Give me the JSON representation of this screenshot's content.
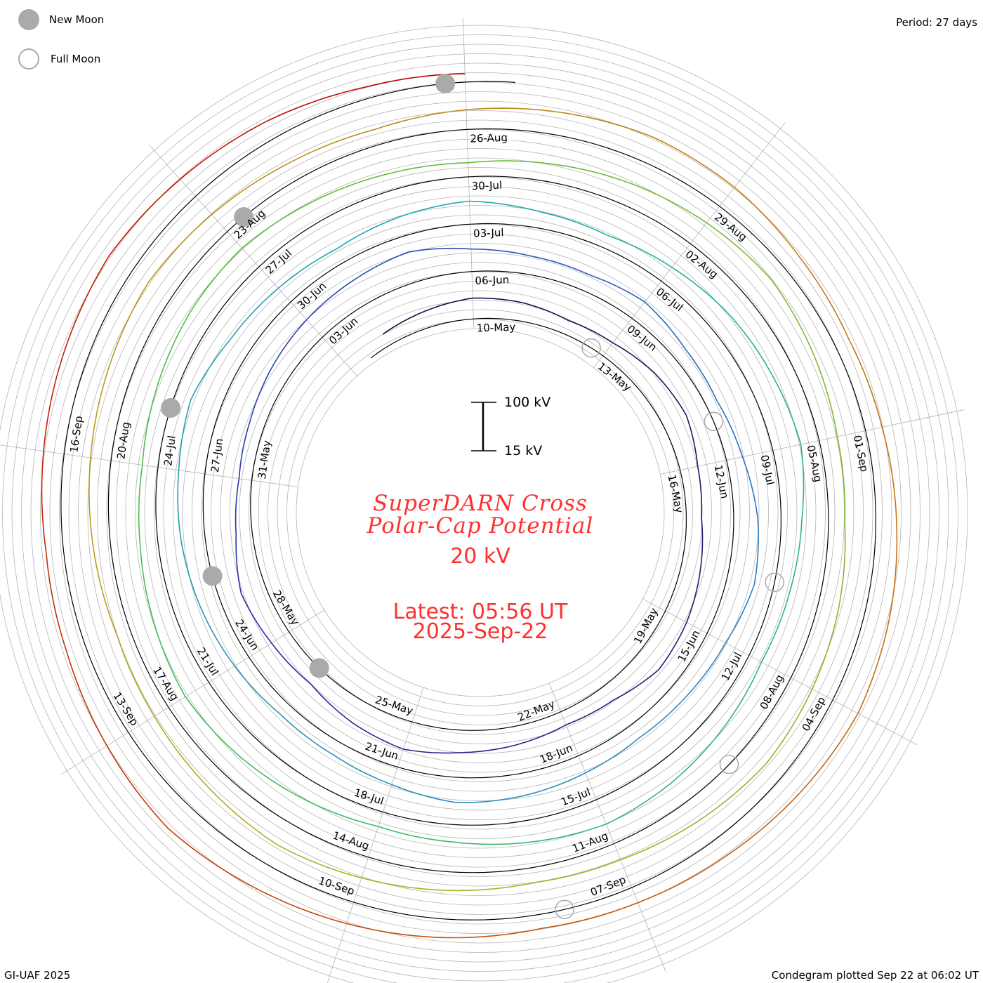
{
  "header": {
    "period": "Period: 27 days"
  },
  "legend": {
    "new_moon": "New Moon",
    "full_moon": "Full Moon"
  },
  "footer": {
    "credit": "GI-UAF 2025",
    "plotted": "Condegram plotted Sep 22 at 06:02 UT"
  },
  "center": {
    "title_line1": "SuperDARN Cross",
    "title_line2": "Polar-Cap Potential",
    "current_value": "20 kV",
    "latest": "Latest: 05:56 UT",
    "date": "2025-Sep-22",
    "scale_top": "100 kV",
    "scale_bottom": "15 kV"
  },
  "chart_data": {
    "type": "line",
    "subtype": "condegram-spiral",
    "title": "SuperDARN Cross Polar-Cap Potential",
    "period_days": 27,
    "units": "kV",
    "scale_range": [
      15,
      100
    ],
    "start_day_offset": -2,
    "x_description": "days since 10-May-2025",
    "spoke_labels": [
      "10-May",
      "13-May",
      "16-May",
      "19-May",
      "22-May",
      "25-May",
      "28-May",
      "31-May",
      "03-Jun",
      "06-Jun",
      "09-Jun",
      "12-Jun",
      "15-Jun",
      "18-Jun",
      "21-Jun",
      "24-Jun",
      "27-Jun",
      "30-Jun",
      "03-Jul",
      "06-Jul",
      "09-Jul",
      "12-Jul",
      "15-Jul",
      "18-Jul",
      "21-Jul",
      "24-Jul",
      "27-Jul",
      "30-Jul",
      "02-Aug",
      "05-Aug",
      "08-Aug",
      "11-Aug",
      "14-Aug",
      "17-Aug",
      "20-Aug",
      "23-Aug",
      "26-Aug",
      "29-Aug",
      "01-Sep",
      "04-Sep",
      "07-Sep",
      "10-Sep",
      "13-Sep",
      "16-Sep"
    ],
    "daily_values": [
      38,
      45,
      52,
      48,
      40,
      44,
      55,
      60,
      47,
      42,
      50,
      58,
      62,
      45,
      40,
      48,
      55,
      66,
      58,
      46,
      52,
      60,
      44,
      38,
      42,
      50,
      57,
      63,
      70,
      55,
      48,
      45,
      52,
      40,
      36,
      44,
      58,
      65,
      52,
      46,
      42,
      48,
      55,
      60,
      48,
      40,
      38,
      45,
      52,
      58,
      62,
      70,
      55,
      48,
      42,
      50,
      56,
      44,
      38,
      46,
      55,
      60,
      66,
      52,
      45,
      40,
      48,
      56,
      62,
      54,
      46,
      42,
      50,
      58,
      64,
      55,
      47,
      43,
      50,
      57,
      60,
      52,
      45,
      40,
      47,
      55,
      62,
      68,
      58,
      48,
      44,
      52,
      58,
      63,
      55,
      46,
      42,
      48,
      54,
      60,
      52,
      45,
      40,
      46,
      52,
      58,
      64,
      56,
      48,
      43,
      50,
      56,
      62,
      58,
      48,
      42,
      45,
      52,
      60,
      66,
      58,
      50,
      44,
      40,
      48,
      55,
      62,
      70,
      60,
      50,
      46,
      52,
      58,
      64,
      56,
      48,
      36,
      30
    ],
    "new_moon_days": [
      17.1,
      46.4,
      75.8,
      105.25,
      134.8
    ],
    "full_moon_days": [
      2.7,
      32.3,
      61.9,
      91.3,
      120.75
    ],
    "color_stops": [
      "#1a0a3a",
      "#2a2aa8",
      "#2a8ac8",
      "#20b0a0",
      "#50c040",
      "#b0b020",
      "#c87010",
      "#c00000"
    ],
    "baseline_color": "#000000",
    "grid_color": "#b4b4b4",
    "moon_color": "#aaaaaa"
  }
}
